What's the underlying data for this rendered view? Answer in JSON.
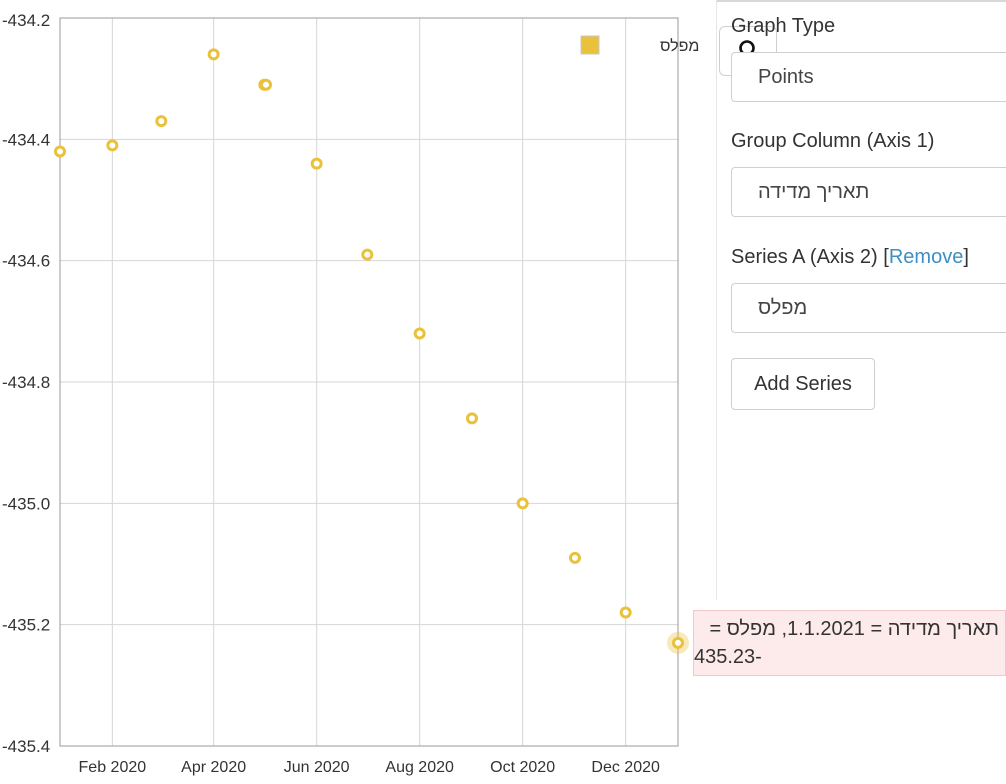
{
  "chart_data": {
    "type": "scatter",
    "xlabel": "",
    "ylabel": "",
    "ylim": [
      -435.4,
      -434.2
    ],
    "xlim": [
      "2020-01-01",
      "2021-01-01"
    ],
    "y_ticks": [
      "-434.2",
      "-434.4",
      "-434.6",
      "-434.8",
      "-435.0",
      "-435.2",
      "-435.4"
    ],
    "x_ticks": [
      {
        "date": "2020-02-01",
        "label": "Feb 2020"
      },
      {
        "date": "2020-04-01",
        "label": "Apr 2020"
      },
      {
        "date": "2020-06-01",
        "label": "Jun 2020"
      },
      {
        "date": "2020-08-01",
        "label": "Aug 2020"
      },
      {
        "date": "2020-10-01",
        "label": "Oct 2020"
      },
      {
        "date": "2020-12-01",
        "label": "Dec 2020"
      }
    ],
    "grid": true,
    "legend_position": "top-right",
    "series": [
      {
        "name": "מפלס",
        "color": "#e9c13a",
        "points": [
          {
            "x": "2020-01-01",
            "y": -434.42
          },
          {
            "x": "2020-02-01",
            "y": -434.41
          },
          {
            "x": "2020-03-01",
            "y": -434.37
          },
          {
            "x": "2020-04-01",
            "y": -434.26
          },
          {
            "x": "2020-05-01",
            "y": -434.31
          },
          {
            "x": "2020-05-02",
            "y": -434.31
          },
          {
            "x": "2020-06-01",
            "y": -434.44
          },
          {
            "x": "2020-07-01",
            "y": -434.59
          },
          {
            "x": "2020-08-01",
            "y": -434.72
          },
          {
            "x": "2020-09-01",
            "y": -434.86
          },
          {
            "x": "2020-10-01",
            "y": -435.0
          },
          {
            "x": "2020-11-01",
            "y": -435.09
          },
          {
            "x": "2020-12-01",
            "y": -435.18
          },
          {
            "x": "2021-01-01",
            "y": -435.23
          }
        ]
      }
    ],
    "highlighted_point_index": 13
  },
  "tooltip": {
    "line1": "תאריך מדידה = 1.1.2021, מפלס =",
    "line2": "435.23-"
  },
  "panel": {
    "graph_type_label": "Graph Type",
    "graph_type_value": "Points",
    "group_column_label": "Group Column (Axis 1)",
    "group_column_value": "תאריך מדידה",
    "series_a_label": "Series A (Axis 2)",
    "remove_link": "Remove",
    "series_a_value": "מפלס",
    "add_series_label": "Add Series"
  },
  "icons": {
    "search": "search-icon"
  }
}
